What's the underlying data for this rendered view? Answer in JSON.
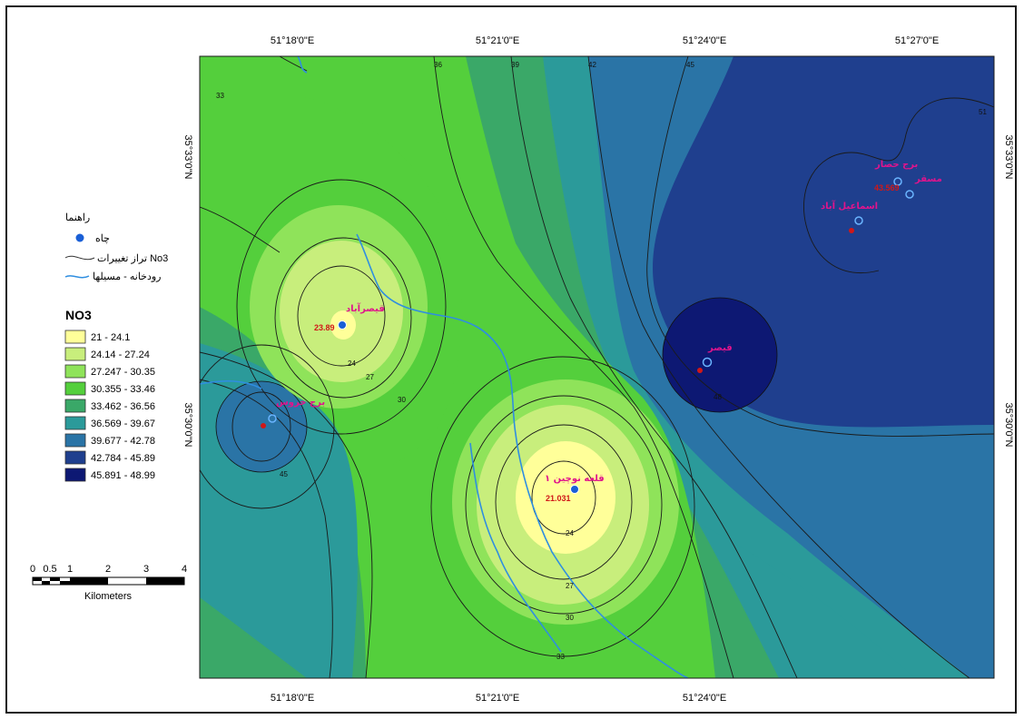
{
  "map": {
    "coord_labels": {
      "x_ticks": [
        "51°18'0\"E",
        "51°21'0\"E",
        "51°24'0\"E",
        "51°27'0\"E"
      ],
      "y_ticks": [
        "35°33'0\"N",
        "35°30'0\"N"
      ]
    },
    "places": [
      {
        "name": "قیصرآباد",
        "value": "23.89"
      },
      {
        "name": "قلعه نوچین ۱",
        "value": "21.031"
      },
      {
        "name": "قیصر",
        "value": ""
      },
      {
        "name": "برج خروس",
        "value": ""
      },
      {
        "name": "برج حصار",
        "value": ""
      },
      {
        "name": "مسقر",
        "value": "43.569"
      },
      {
        "name": "اسماعیل آباد",
        "value": ""
      }
    ],
    "contour_labels": [
      "36",
      "39",
      "42",
      "45",
      "33",
      "30",
      "27",
      "24",
      "48",
      "51"
    ],
    "colors": {
      "class_1": "#ffff99",
      "class_2": "#c8ee7c",
      "class_3": "#8fe35a",
      "class_4": "#54cf3c",
      "class_5": "#3aa868",
      "class_6": "#2b9a9a",
      "class_7": "#2a74a6",
      "class_8": "#1f3f8e",
      "class_9": "#0d1873",
      "river": "#2f8ee0",
      "well": "#1a5fd6"
    }
  },
  "legend": {
    "title_fa": "راهنما",
    "items": [
      {
        "label": "چاه",
        "icon": "well-icon"
      },
      {
        "label": "تراز تغییرات No3",
        "icon": "contour-line-icon"
      },
      {
        "label": "رودخانه - مسیلها",
        "icon": "river-icon"
      }
    ],
    "no3_title": "NO3",
    "classes": [
      {
        "range": "21 - 24.1"
      },
      {
        "range": "24.14 - 27.24"
      },
      {
        "range": "27.247 - 30.35"
      },
      {
        "range": "30.355 - 33.46"
      },
      {
        "range": "33.462 - 36.56"
      },
      {
        "range": "36.569 - 39.67"
      },
      {
        "range": "39.677 - 42.78"
      },
      {
        "range": "42.784 - 45.89"
      },
      {
        "range": "45.891 - 48.99"
      }
    ]
  },
  "scale_bar": {
    "ticks": [
      "0",
      "0.5",
      "1",
      "2",
      "3",
      "4"
    ],
    "unit": "Kilometers"
  }
}
